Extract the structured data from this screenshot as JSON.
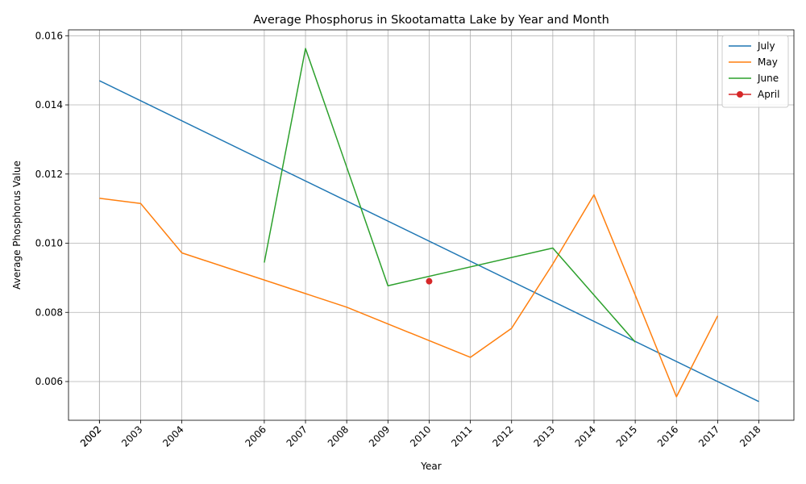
{
  "chart_data": {
    "type": "line",
    "title": "Average Phosphorus in Skootamatta Lake by Year and Month",
    "xlabel": "Year",
    "ylabel": "Average Phosphorus Value",
    "xlim": [
      2001.25,
      2018.85
    ],
    "ylim": [
      0.00488,
      0.01617
    ],
    "x_ticks": [
      "2002",
      "2002",
      "2003",
      "2004",
      "2006",
      "2007",
      "2008",
      "2009",
      "2010",
      "2011",
      "2012",
      "2013",
      "2014",
      "2015",
      "2016",
      "2017",
      "2018"
    ],
    "x_tick_values": [
      2002,
      2002,
      2003,
      2004,
      2006,
      2007,
      2008,
      2009,
      2010,
      2011,
      2012,
      2013,
      2014,
      2015,
      2016,
      2017,
      2018
    ],
    "y_ticks": [
      "0.006",
      "0.008",
      "0.010",
      "0.012",
      "0.014",
      "0.016"
    ],
    "y_tick_values": [
      0.006,
      0.008,
      0.01,
      0.012,
      0.014,
      0.016
    ],
    "grid": true,
    "legend_position": "top-right",
    "series": [
      {
        "name": "July",
        "color": "#1f77b4",
        "marker": "none",
        "x": [
          2002,
          2018
        ],
        "y": [
          0.0147,
          0.00542
        ]
      },
      {
        "name": "May",
        "color": "#ff7f0e",
        "marker": "none",
        "x": [
          2002,
          2003,
          2004,
          2008,
          2011,
          2012,
          2013,
          2014,
          2015,
          2016,
          2017
        ],
        "y": [
          0.0113,
          0.01115,
          0.00972,
          0.00815,
          0.0067,
          0.00754,
          0.0094,
          0.0114,
          0.0085,
          0.00556,
          0.0079
        ]
      },
      {
        "name": "June",
        "color": "#2ca02c",
        "marker": "none",
        "x": [
          2006,
          2007,
          2008,
          2009,
          2013,
          2015
        ],
        "y": [
          0.00944,
          0.01563,
          0.0122,
          0.00877,
          0.00986,
          0.00714
        ]
      },
      {
        "name": "April",
        "color": "#d62728",
        "marker": "circle",
        "x": [
          2010
        ],
        "y": [
          0.0089
        ]
      }
    ]
  }
}
